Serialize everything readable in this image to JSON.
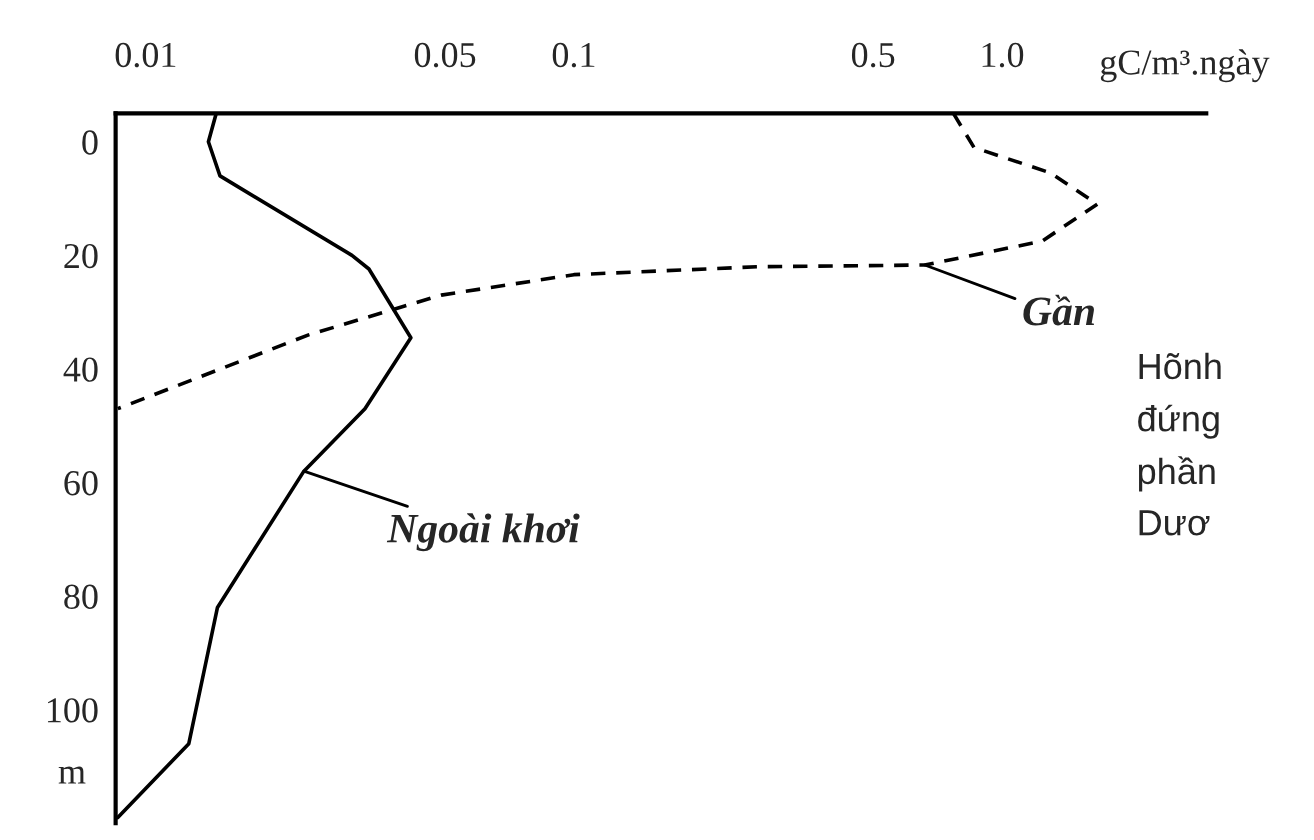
{
  "chart_data": {
    "type": "line",
    "xlabel": "gC/m³.ngày",
    "ylabel": "m",
    "log": "x",
    "xlim": [
      0.0085,
      3
    ],
    "xticks": [
      0.01,
      0.05,
      0.1,
      0.5,
      {
        "value": 1,
        "label": "1.0"
      }
    ],
    "ylim": [
      120,
      -5
    ],
    "yticks": [
      0,
      20,
      40,
      60,
      80,
      100
    ],
    "grid": false,
    "series": [
      {
        "color": "#000000",
        "line_style": "solid",
        "x": [
          0.0146,
          0.014,
          0.0149,
          0.0303,
          0.0332,
          0.0416,
          0.0325,
          0.0234,
          0.0147,
          0.0126,
          0.0086
        ],
        "values": [
          -5,
          0,
          6,
          20,
          22.4,
          34.5,
          47,
          58,
          82,
          106,
          119
        ]
      },
      {
        "color": "#000000",
        "line_style": "dashed",
        "x": [
          0.77,
          0.86,
          1.3,
          1.67,
          1.24,
          0.66,
          0.27,
          0.1,
          0.049,
          0.024,
          0.0086
        ],
        "values": [
          -5,
          1,
          5.5,
          11,
          17.5,
          21.7,
          22,
          23.4,
          27,
          34,
          47
        ]
      }
    ],
    "annotations": [
      {
        "text": "Gần",
        "x": 0.66,
        "y": 21.7
      },
      {
        "text": "Ngoài khơi",
        "x": 0.0234,
        "y": 58
      },
      "Hõnh",
      "đứng",
      "phần",
      "Dươ"
    ]
  }
}
